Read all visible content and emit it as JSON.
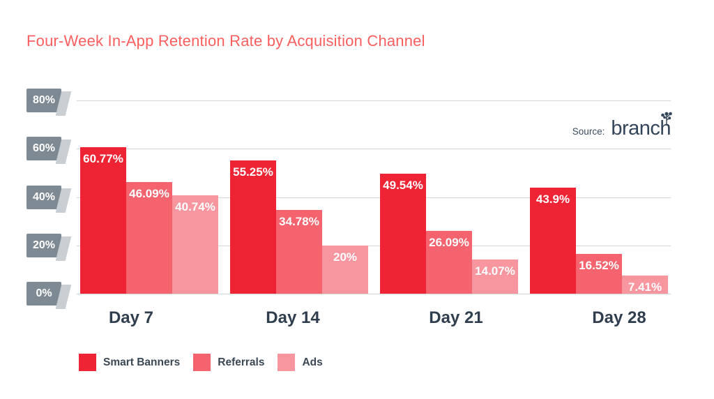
{
  "title": "Four-Week In-App Retention Rate by Acquisition Channel",
  "source": {
    "label": "Source:",
    "brand": "branch"
  },
  "y_axis": {
    "ticks": [
      "80%",
      "60%",
      "40%",
      "20%",
      "0%"
    ],
    "max": 80
  },
  "x_labels": [
    "Day 7",
    "Day 14",
    "Day 21",
    "Day 28"
  ],
  "legend": [
    {
      "label": "Smart Banners",
      "color": "#ee2434"
    },
    {
      "label": "Referrals",
      "color": "#f5636e"
    },
    {
      "label": "Ads",
      "color": "#f8969f"
    }
  ],
  "colors": {
    "title": "#fb5e5e",
    "axis_badge": "#7d8a93",
    "axis_badge_shadow": "#c9ced3",
    "gridline": "#d3d6d7",
    "dark_text": "#2f3e4e",
    "bar_label": "#ffffff",
    "brand_text": "#33455a",
    "background": "#ffffff"
  },
  "chart_data": {
    "type": "bar",
    "title": "Four-Week In-App Retention Rate by Acquisition Channel",
    "categories": [
      "Day 7",
      "Day 14",
      "Day 21",
      "Day 28"
    ],
    "series": [
      {
        "name": "Smart Banners",
        "color": "#ee2434",
        "values": [
          60.77,
          55.25,
          49.54,
          43.9
        ]
      },
      {
        "name": "Referrals",
        "color": "#f5636e",
        "values": [
          46.09,
          34.78,
          26.09,
          16.52
        ]
      },
      {
        "name": "Ads",
        "color": "#f8969f",
        "values": [
          40.74,
          20,
          14.07,
          7.41
        ]
      }
    ],
    "value_label_format": "{value}%",
    "xlabel": "",
    "ylabel": "",
    "ylim": [
      0,
      80
    ],
    "grid": true,
    "legend_position": "bottom",
    "source_text": "Source: branch"
  }
}
